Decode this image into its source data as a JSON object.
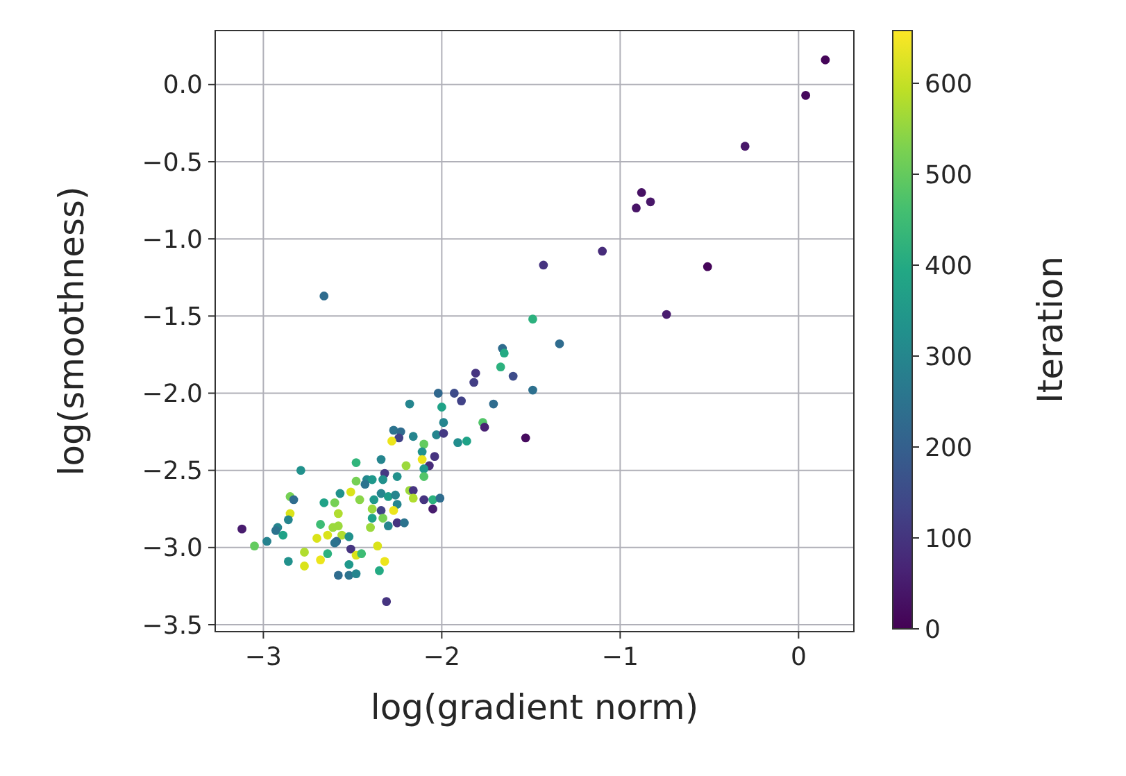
{
  "chart_data": {
    "type": "scatter",
    "xlabel": "log(gradient norm)",
    "ylabel": "log(smoothness)",
    "clabel": "Iteration",
    "xlim": [
      -3.27,
      0.31
    ],
    "ylim": [
      -3.545,
      0.35
    ],
    "xticks": [
      {
        "value": -3,
        "label": "−3"
      },
      {
        "value": -2,
        "label": "−2"
      },
      {
        "value": -1,
        "label": "−1"
      },
      {
        "value": 0,
        "label": "0"
      }
    ],
    "yticks": [
      {
        "value": -3.5,
        "label": "−3.5"
      },
      {
        "value": -3,
        "label": "−3.0"
      },
      {
        "value": -2.5,
        "label": "−2.5"
      },
      {
        "value": -2,
        "label": "−2.0"
      },
      {
        "value": -1.5,
        "label": "−1.5"
      },
      {
        "value": -1,
        "label": "−1.0"
      },
      {
        "value": -0.5,
        "label": "−0.5"
      },
      {
        "value": 0,
        "label": "0.0"
      }
    ],
    "clim": [
      0,
      658
    ],
    "cticks": [
      0,
      100,
      200,
      300,
      400,
      500,
      600
    ],
    "grid": true,
    "marker": "circle",
    "x": [
      0.15,
      0.04,
      -0.3,
      -0.88,
      -0.83,
      -0.91,
      -1.1,
      -1.43,
      -0.51,
      -0.74,
      -1.34,
      -2.66,
      -1.49,
      -1.66,
      -1.65,
      -1.67,
      -1.81,
      -1.6,
      -1.82,
      -2.02,
      -1.93,
      -1.49,
      -1.89,
      -1.71,
      -2.18,
      -2.0,
      -1.99,
      -1.77,
      -1.76,
      -1.53,
      -2.27,
      -2.23,
      -2.24,
      -2.16,
      -2.03,
      -1.99,
      -1.91,
      -1.86,
      -2.28,
      -2.1,
      -2.11,
      -2.04,
      -2.34,
      -2.11,
      -2.07,
      -2.1,
      -2.2,
      -2.48,
      -2.25,
      -2.1,
      -2.32,
      -2.33,
      -2.42,
      -2.39,
      -2.43,
      -2.48,
      -2.18,
      -2.16,
      -2.16,
      -2.1,
      -2.05,
      -2.01,
      -2.05,
      -2.34,
      -2.3,
      -2.26,
      -2.38,
      -2.25,
      -2.46,
      -2.39,
      -2.34,
      -2.27,
      -2.39,
      -2.33,
      -2.4,
      -2.3,
      -2.25,
      -2.21,
      -2.79,
      -2.57,
      -2.51,
      -2.85,
      -2.83,
      -2.66,
      -2.6,
      -2.85,
      -2.86,
      -2.92,
      -2.93,
      -2.89,
      -3.12,
      -2.98,
      -3.05,
      -2.68,
      -2.58,
      -2.58,
      -2.61,
      -2.64,
      -2.56,
      -2.52,
      -2.7,
      -2.59,
      -2.6,
      -2.51,
      -2.48,
      -2.45,
      -2.36,
      -2.77,
      -2.86,
      -2.77,
      -2.68,
      -2.64,
      -2.52,
      -2.58,
      -2.52,
      -2.48,
      -2.32,
      -2.35,
      -2.31
    ],
    "values": [
      0.16,
      -0.07,
      -0.4,
      -0.7,
      -0.76,
      -0.8,
      -1.08,
      -1.17,
      -1.18,
      -1.49,
      -1.68,
      -1.37,
      -1.52,
      -1.71,
      -1.74,
      -1.83,
      -1.87,
      -1.89,
      -1.93,
      -2.0,
      -2.0,
      -1.98,
      -2.05,
      -2.07,
      -2.07,
      -2.09,
      -2.19,
      -2.19,
      -2.22,
      -2.29,
      -2.24,
      -2.25,
      -2.29,
      -2.28,
      -2.27,
      -2.26,
      -2.32,
      -2.31,
      -2.31,
      -2.33,
      -2.38,
      -2.41,
      -2.43,
      -2.43,
      -2.47,
      -2.49,
      -2.47,
      -2.45,
      -2.54,
      -2.54,
      -2.52,
      -2.56,
      -2.56,
      -2.56,
      -2.59,
      -2.57,
      -2.63,
      -2.63,
      -2.68,
      -2.69,
      -2.69,
      -2.68,
      -2.75,
      -2.65,
      -2.67,
      -2.66,
      -2.69,
      -2.72,
      -2.69,
      -2.75,
      -2.76,
      -2.76,
      -2.81,
      -2.81,
      -2.87,
      -2.86,
      -2.84,
      -2.84,
      -2.5,
      -2.65,
      -2.64,
      -2.67,
      -2.69,
      -2.71,
      -2.71,
      -2.78,
      -2.82,
      -2.87,
      -2.89,
      -2.92,
      -2.88,
      -2.96,
      -2.99,
      -2.85,
      -2.78,
      -2.86,
      -2.87,
      -2.92,
      -2.92,
      -2.93,
      -2.94,
      -2.96,
      -2.97,
      -3.01,
      -3.05,
      -3.04,
      -2.99,
      -3.03,
      -3.09,
      -3.12,
      -3.08,
      -3.04,
      -3.11,
      -3.18,
      -3.18,
      -3.17,
      -3.09,
      -3.15,
      -3.35
    ],
    "cvalues": [
      10,
      15,
      40,
      30,
      40,
      35,
      80,
      100,
      10,
      50,
      230,
      230,
      420,
      230,
      400,
      420,
      100,
      150,
      120,
      220,
      150,
      240,
      130,
      230,
      300,
      380,
      300,
      480,
      60,
      20,
      250,
      230,
      130,
      300,
      300,
      110,
      320,
      380,
      640,
      500,
      330,
      100,
      300,
      640,
      80,
      350,
      560,
      430,
      330,
      480,
      110,
      330,
      310,
      350,
      250,
      520,
      560,
      100,
      580,
      100,
      420,
      230,
      50,
      300,
      360,
      300,
      350,
      300,
      540,
      560,
      130,
      640,
      380,
      520,
      560,
      300,
      100,
      250,
      330,
      330,
      620,
      520,
      230,
      380,
      520,
      620,
      300,
      300,
      250,
      380,
      50,
      290,
      500,
      450,
      580,
      560,
      560,
      620,
      580,
      330,
      620,
      220,
      250,
      100,
      620,
      450,
      620,
      580,
      330,
      620,
      640,
      420,
      350,
      230,
      250,
      300,
      640,
      400,
      100
    ]
  }
}
